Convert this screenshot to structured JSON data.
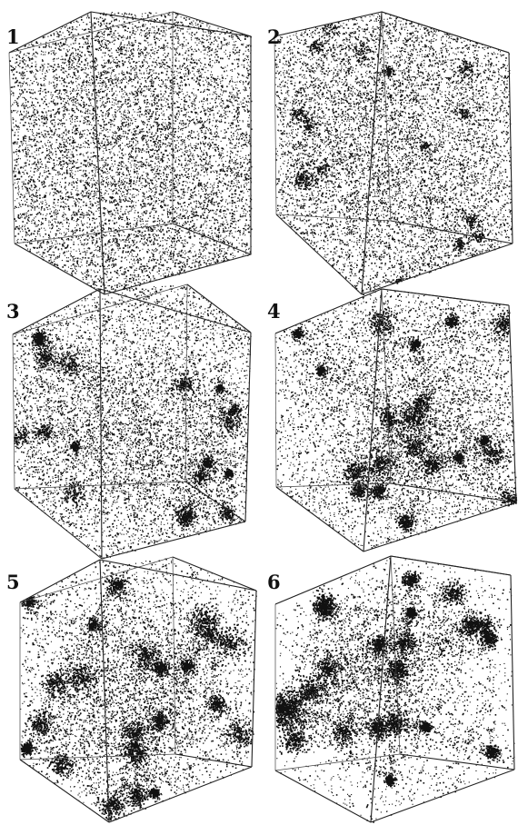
{
  "panels": [
    {
      "label": "1",
      "clustering": 0.0,
      "ink": "#111111"
    },
    {
      "label": "2",
      "clustering": 0.2,
      "ink": "#111111"
    },
    {
      "label": "3",
      "clustering": 0.4,
      "ink": "#111111"
    },
    {
      "label": "4",
      "clustering": 0.6,
      "ink": "#111111"
    },
    {
      "label": "5",
      "clustering": 0.8,
      "ink": "#111111"
    },
    {
      "label": "6",
      "clustering": 0.95,
      "ink": "#111111"
    }
  ]
}
